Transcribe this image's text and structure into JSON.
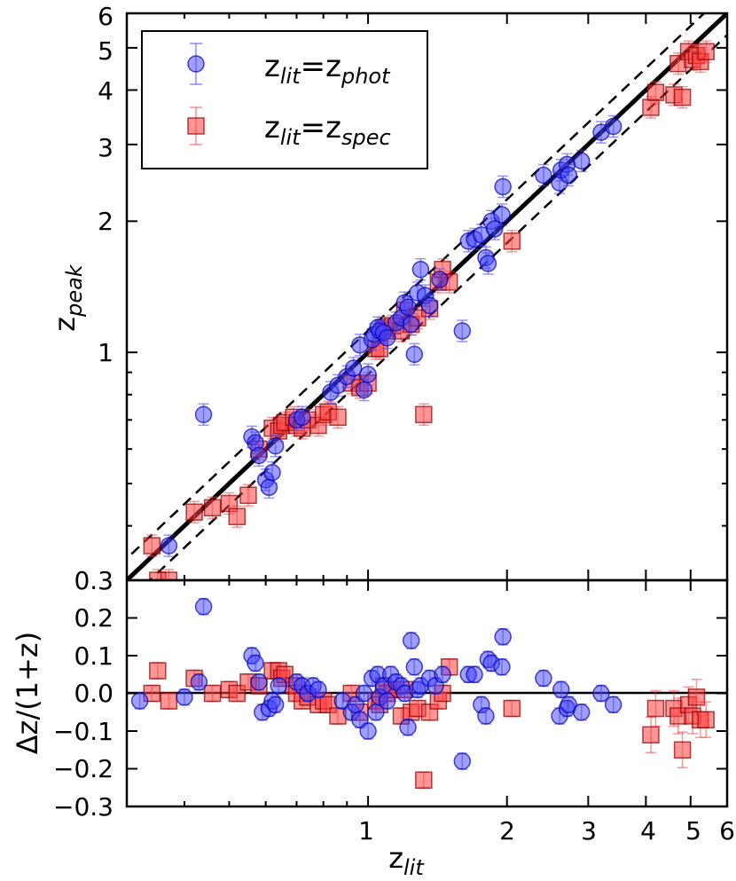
{
  "chart_data": [
    {
      "panel": "main",
      "type": "scatter",
      "xscale": "log",
      "yscale": "log",
      "xlim": [
        0.3,
        6.0
      ],
      "ylim": [
        0.3,
        6.0
      ],
      "xlabel": "z_lit",
      "ylabel": "z_peak",
      "ylabel_base": "z",
      "ylabel_sub": "peak",
      "x_tick_labels": [
        "1",
        "2",
        "3",
        "4",
        "5",
        "6"
      ],
      "y_tick_labels": [
        "0.3",
        "1",
        "2",
        "3",
        "4",
        "5",
        "6"
      ],
      "legend": {
        "position": "top-left",
        "entries": [
          {
            "series": "phot",
            "base": "z",
            "sub1": "lit",
            "eq": "=",
            "base2": "z",
            "sub2": "phot"
          },
          {
            "series": "spec",
            "base": "z",
            "sub1": "lit",
            "eq": "=",
            "base2": "z",
            "sub2": "spec"
          }
        ]
      },
      "lines": [
        {
          "name": "one-to-one",
          "style": "solid",
          "offset": 0.0
        },
        {
          "name": "upper-bound",
          "style": "dashed",
          "offset": 0.05
        },
        {
          "name": "lower-bound",
          "style": "dashed",
          "offset": -0.05
        }
      ],
      "series": [
        {
          "name": "z_lit=z_phot",
          "marker": "circle",
          "color": "#4040ff",
          "points": [
            [
              0.37,
              0.36
            ],
            [
              0.44,
              0.72
            ],
            [
              0.56,
              0.64
            ],
            [
              0.57,
              0.62
            ],
            [
              0.58,
              0.58
            ],
            [
              0.6,
              0.51
            ],
            [
              0.61,
              0.49
            ],
            [
              0.62,
              0.53
            ],
            [
              0.63,
              0.61
            ],
            [
              0.7,
              0.7
            ],
            [
              0.72,
              0.71
            ],
            [
              0.83,
              0.81
            ],
            [
              0.86,
              0.84
            ],
            [
              0.9,
              0.88
            ],
            [
              0.93,
              0.92
            ],
            [
              0.96,
              1.04
            ],
            [
              0.98,
              0.82
            ],
            [
              1.0,
              0.89
            ],
            [
              1.02,
              1.07
            ],
            [
              1.03,
              1.1
            ],
            [
              1.05,
              1.14
            ],
            [
              1.06,
              1.12
            ],
            [
              1.08,
              1.11
            ],
            [
              1.1,
              1.08
            ],
            [
              1.15,
              1.17
            ],
            [
              1.18,
              1.2
            ],
            [
              1.2,
              1.3
            ],
            [
              1.22,
              1.27
            ],
            [
              1.24,
              1.16
            ],
            [
              1.26,
              0.99
            ],
            [
              1.28,
              1.37
            ],
            [
              1.3,
              1.55
            ],
            [
              1.33,
              1.35
            ],
            [
              1.36,
              1.28
            ],
            [
              1.43,
              1.47
            ],
            [
              1.6,
              1.12
            ],
            [
              1.65,
              1.8
            ],
            [
              1.7,
              1.82
            ],
            [
              1.76,
              1.86
            ],
            [
              1.8,
              1.65
            ],
            [
              1.82,
              1.6
            ],
            [
              1.85,
              2.0
            ],
            [
              1.88,
              1.92
            ],
            [
              1.95,
              2.07
            ],
            [
              1.96,
              2.4
            ],
            [
              2.4,
              2.55
            ],
            [
              2.6,
              2.45
            ],
            [
              2.62,
              2.62
            ],
            [
              2.7,
              2.7
            ],
            [
              2.72,
              2.55
            ],
            [
              2.9,
              2.75
            ],
            [
              3.2,
              3.2
            ],
            [
              3.4,
              3.3
            ]
          ]
        },
        {
          "name": "z_lit=z_spec",
          "marker": "square",
          "color": "#ff4040",
          "points": [
            [
              0.34,
              0.36
            ],
            [
              0.35,
              0.3
            ],
            [
              0.37,
              0.3
            ],
            [
              0.42,
              0.43
            ],
            [
              0.46,
              0.44
            ],
            [
              0.5,
              0.45
            ],
            [
              0.52,
              0.42
            ],
            [
              0.55,
              0.47
            ],
            [
              0.58,
              0.6
            ],
            [
              0.62,
              0.67
            ],
            [
              0.64,
              0.66
            ],
            [
              0.65,
              0.68
            ],
            [
              0.66,
              0.69
            ],
            [
              0.69,
              0.71
            ],
            [
              0.7,
              0.68
            ],
            [
              0.72,
              0.67
            ],
            [
              0.74,
              0.7
            ],
            [
              0.78,
              0.68
            ],
            [
              0.8,
              0.72
            ],
            [
              0.82,
              0.73
            ],
            [
              0.86,
              0.71
            ],
            [
              0.92,
              0.85
            ],
            [
              0.96,
              0.83
            ],
            [
              1.0,
              0.85
            ],
            [
              1.04,
              1.02
            ],
            [
              1.06,
              1.02
            ],
            [
              1.08,
              1.14
            ],
            [
              1.1,
              1.12
            ],
            [
              1.13,
              1.15
            ],
            [
              1.18,
              1.12
            ],
            [
              1.2,
              1.25
            ],
            [
              1.24,
              1.16
            ],
            [
              1.28,
              1.2
            ],
            [
              1.32,
              0.72
            ],
            [
              1.36,
              1.26
            ],
            [
              1.42,
              1.45
            ],
            [
              1.45,
              1.55
            ],
            [
              1.5,
              1.45
            ],
            [
              2.05,
              1.8
            ],
            [
              4.1,
              3.65
            ],
            [
              4.2,
              3.95
            ],
            [
              4.6,
              3.9
            ],
            [
              4.7,
              4.6
            ],
            [
              4.8,
              3.85
            ],
            [
              4.95,
              4.9
            ],
            [
              5.05,
              4.7
            ],
            [
              5.15,
              4.8
            ],
            [
              5.25,
              4.65
            ],
            [
              5.4,
              4.9
            ]
          ]
        }
      ]
    },
    {
      "panel": "residual",
      "type": "scatter",
      "xscale": "log",
      "xlim": [
        0.3,
        6.0
      ],
      "ylim": [
        -0.3,
        0.3
      ],
      "xlabel": "z",
      "xlabel_sub": "lit",
      "ylabel": "Δz/(1+z)",
      "x_tick_labels": [
        "1",
        "2",
        "3",
        "4",
        "5",
        "6"
      ],
      "y_tick_labels": [
        "0.2",
        "0.1",
        "0.0",
        "−0.1",
        "−0.2",
        "−0.3"
      ],
      "reference_line": 0.0,
      "series": [
        {
          "name": "z_lit=z_phot",
          "marker": "circle",
          "color": "#4040ff",
          "points": [
            [
              0.32,
              -0.02
            ],
            [
              0.4,
              -0.01
            ],
            [
              0.43,
              0.03
            ],
            [
              0.44,
              0.23
            ],
            [
              0.56,
              0.1
            ],
            [
              0.57,
              0.08
            ],
            [
              0.58,
              0.03
            ],
            [
              0.59,
              -0.05
            ],
            [
              0.61,
              -0.04
            ],
            [
              0.62,
              -0.02
            ],
            [
              0.63,
              -0.03
            ],
            [
              0.64,
              0.02
            ],
            [
              0.7,
              0.03
            ],
            [
              0.72,
              0.02
            ],
            [
              0.74,
              0.0
            ],
            [
              0.76,
              0.02
            ],
            [
              0.78,
              0.01
            ],
            [
              0.88,
              -0.02
            ],
            [
              0.92,
              -0.05
            ],
            [
              0.94,
              -0.03
            ],
            [
              0.96,
              -0.07
            ],
            [
              0.98,
              0.0
            ],
            [
              1.0,
              -0.1
            ],
            [
              1.02,
              0.04
            ],
            [
              1.04,
              -0.05
            ],
            [
              1.05,
              0.05
            ],
            [
              1.06,
              -0.01
            ],
            [
              1.08,
              0.02
            ],
            [
              1.1,
              -0.02
            ],
            [
              1.12,
              0.05
            ],
            [
              1.15,
              0.03
            ],
            [
              1.18,
              0.02
            ],
            [
              1.2,
              0.0
            ],
            [
              1.22,
              -0.09
            ],
            [
              1.24,
              0.14
            ],
            [
              1.26,
              0.07
            ],
            [
              1.28,
              0.01
            ],
            [
              1.3,
              0.02
            ],
            [
              1.36,
              0.04
            ],
            [
              1.4,
              0.02
            ],
            [
              1.45,
              0.05
            ],
            [
              1.6,
              -0.18
            ],
            [
              1.65,
              0.05
            ],
            [
              1.7,
              0.05
            ],
            [
              1.76,
              -0.03
            ],
            [
              1.8,
              -0.06
            ],
            [
              1.82,
              0.09
            ],
            [
              1.85,
              0.08
            ],
            [
              1.95,
              0.07
            ],
            [
              1.96,
              0.15
            ],
            [
              2.4,
              0.04
            ],
            [
              2.6,
              -0.06
            ],
            [
              2.62,
              0.01
            ],
            [
              2.7,
              -0.04
            ],
            [
              2.72,
              -0.03
            ],
            [
              2.9,
              -0.05
            ],
            [
              3.2,
              0.0
            ],
            [
              3.4,
              -0.03
            ]
          ]
        },
        {
          "name": "z_lit=z_spec",
          "marker": "square",
          "color": "#ff4040",
          "points": [
            [
              0.34,
              0.0
            ],
            [
              0.35,
              0.06
            ],
            [
              0.37,
              -0.02
            ],
            [
              0.42,
              0.04
            ],
            [
              0.46,
              0.0
            ],
            [
              0.5,
              0.01
            ],
            [
              0.52,
              0.0
            ],
            [
              0.55,
              0.03
            ],
            [
              0.58,
              0.02
            ],
            [
              0.62,
              0.06
            ],
            [
              0.64,
              0.06
            ],
            [
              0.65,
              0.04
            ],
            [
              0.66,
              0.05
            ],
            [
              0.69,
              0.02
            ],
            [
              0.7,
              0.0
            ],
            [
              0.72,
              -0.02
            ],
            [
              0.74,
              -0.01
            ],
            [
              0.78,
              -0.03
            ],
            [
              0.8,
              -0.02
            ],
            [
              0.82,
              -0.03
            ],
            [
              0.86,
              -0.06
            ],
            [
              0.92,
              0.0
            ],
            [
              0.96,
              -0.05
            ],
            [
              1.04,
              -0.02
            ],
            [
              1.06,
              -0.03
            ],
            [
              1.08,
              0.02
            ],
            [
              1.1,
              0.0
            ],
            [
              1.13,
              0.01
            ],
            [
              1.18,
              -0.06
            ],
            [
              1.2,
              0.01
            ],
            [
              1.24,
              -0.05
            ],
            [
              1.28,
              -0.04
            ],
            [
              1.32,
              -0.23
            ],
            [
              1.36,
              -0.05
            ],
            [
              1.42,
              -0.02
            ],
            [
              1.45,
              0.0
            ],
            [
              1.5,
              0.07
            ],
            [
              2.05,
              -0.04
            ],
            [
              4.1,
              -0.11
            ],
            [
              4.2,
              -0.04
            ],
            [
              4.6,
              -0.04
            ],
            [
              4.7,
              -0.06
            ],
            [
              4.8,
              -0.15
            ],
            [
              4.95,
              -0.03
            ],
            [
              5.05,
              -0.06
            ],
            [
              5.15,
              -0.01
            ],
            [
              5.25,
              -0.07
            ],
            [
              5.4,
              -0.07
            ]
          ]
        }
      ]
    }
  ]
}
